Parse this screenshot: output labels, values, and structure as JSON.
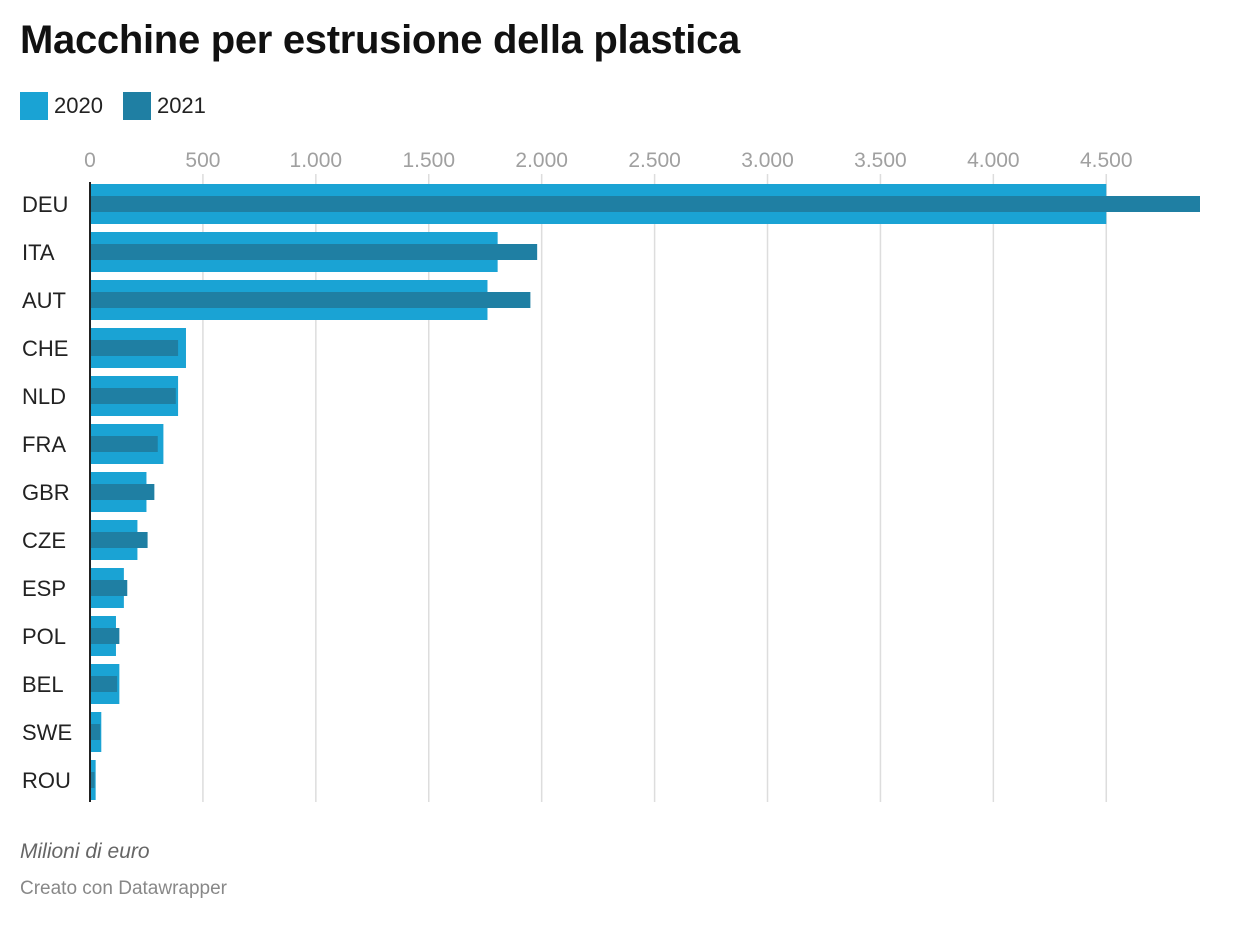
{
  "title": "Macchine per estrusione della plastica",
  "note": "Milioni di euro",
  "credit": "Creato con Datawrapper",
  "colors": {
    "2020": "#1aa3d4",
    "2021": "#1f7fa3",
    "grid": "#dddddd",
    "axis": "#222222",
    "tick": "#a0a0a0"
  },
  "chart_data": {
    "type": "bar",
    "orientation": "horizontal",
    "categories": [
      "DEU",
      "ITA",
      "AUT",
      "CHE",
      "NLD",
      "FRA",
      "GBR",
      "CZE",
      "ESP",
      "POL",
      "BEL",
      "SWE",
      "ROU"
    ],
    "series": [
      {
        "name": "2020",
        "values": [
          4500,
          1805,
          1760,
          425,
          390,
          325,
          250,
          210,
          150,
          115,
          130,
          50,
          25
        ]
      },
      {
        "name": "2021",
        "values": [
          4915,
          1980,
          1950,
          390,
          380,
          300,
          285,
          255,
          165,
          130,
          120,
          45,
          20
        ]
      }
    ],
    "xticks": [
      0,
      500,
      1000,
      1500,
      2000,
      2500,
      3000,
      3500,
      4000,
      4500
    ],
    "xtick_labels": [
      "0",
      "500",
      "1.000",
      "1.500",
      "2.000",
      "2.500",
      "3.000",
      "3.500",
      "4.000",
      "4.500"
    ],
    "xlim": [
      0,
      4915
    ],
    "grid": true,
    "legend": "top-left",
    "xlabel": "",
    "ylabel": ""
  }
}
